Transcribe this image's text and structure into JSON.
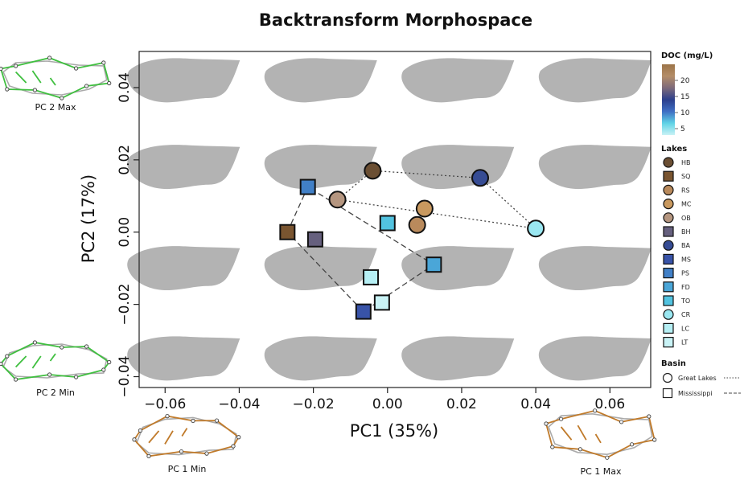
{
  "chart_data": {
    "type": "scatter",
    "title": "Backtransform Morphospace",
    "xlabel": "PC1 (35%)",
    "ylabel": "PC2 (17%)",
    "xlim": [
      -0.067,
      0.071
    ],
    "ylim": [
      -0.043,
      0.05
    ],
    "xticks": [
      -0.06,
      -0.04,
      -0.02,
      0.0,
      0.02,
      0.04,
      0.06
    ],
    "xtick_labels": [
      "−0.06",
      "−0.04",
      "−0.02",
      "0.00",
      "0.02",
      "0.04",
      "0.06"
    ],
    "yticks": [
      -0.04,
      -0.02,
      0.0,
      0.02,
      0.04
    ],
    "ytick_labels": [
      "−0.04",
      "−0.02",
      "0.00",
      "0.02",
      "0.04"
    ],
    "grid": false,
    "background_shapes": {
      "color": "#b3b3b3",
      "x_centers": [
        -0.055,
        -0.018,
        0.019,
        0.056
      ],
      "y_centers": [
        0.042,
        0.018,
        -0.01,
        -0.035
      ]
    },
    "colorbar": {
      "title": "DOC (mg/L)",
      "min": 3,
      "max": 25,
      "ticks": [
        5,
        10,
        15,
        20
      ],
      "stops": [
        "#c9f2f5",
        "#5fd3e6",
        "#3f6fc4",
        "#2c3f8c",
        "#7d6a7a",
        "#b48d68",
        "#9c7448"
      ]
    },
    "legend_lakes_title": "Lakes",
    "legend_basin_title": "Basin",
    "points": [
      {
        "lake": "HB",
        "basin": "Great Lakes",
        "x": -0.004,
        "y": 0.017,
        "color": "#6b4f33"
      },
      {
        "lake": "SQ",
        "basin": "Mississippi",
        "x": -0.027,
        "y": 0.0,
        "color": "#7a5530"
      },
      {
        "lake": "RS",
        "basin": "Great Lakes",
        "x": 0.008,
        "y": 0.002,
        "color": "#b98a5c"
      },
      {
        "lake": "MC",
        "basin": "Great Lakes",
        "x": 0.01,
        "y": 0.0065,
        "color": "#c9995f"
      },
      {
        "lake": "OB",
        "basin": "Great Lakes",
        "x": -0.0135,
        "y": 0.009,
        "color": "#b59680"
      },
      {
        "lake": "BH",
        "basin": "Mississippi",
        "x": -0.0195,
        "y": -0.002,
        "color": "#66607e"
      },
      {
        "lake": "BA",
        "basin": "Great Lakes",
        "x": 0.025,
        "y": 0.015,
        "color": "#364c94"
      },
      {
        "lake": "MS",
        "basin": "Mississippi",
        "x": -0.0065,
        "y": -0.022,
        "color": "#3853a8"
      },
      {
        "lake": "PS",
        "basin": "Mississippi",
        "x": -0.0215,
        "y": 0.0125,
        "color": "#4180c7"
      },
      {
        "lake": "FD",
        "basin": "Mississippi",
        "x": 0.0125,
        "y": -0.009,
        "color": "#4aa6d8"
      },
      {
        "lake": "TO",
        "basin": "Mississippi",
        "x": 0.0,
        "y": 0.0025,
        "color": "#52c3e0"
      },
      {
        "lake": "CR",
        "basin": "Great Lakes",
        "x": 0.04,
        "y": 0.001,
        "color": "#9ae7f1"
      },
      {
        "lake": "LC",
        "basin": "Mississippi",
        "x": -0.0045,
        "y": -0.0125,
        "color": "#b6eff4"
      },
      {
        "lake": "LT",
        "basin": "Mississippi",
        "x": -0.0015,
        "y": -0.0195,
        "color": "#c9f3f6"
      }
    ],
    "hulls": [
      {
        "basin": "Great Lakes",
        "line": "dotted",
        "x": [
          -0.004,
          0.025,
          0.04,
          -0.0135
        ],
        "y": [
          0.017,
          0.015,
          0.001,
          0.009
        ]
      },
      {
        "basin": "Mississippi",
        "line": "dashed",
        "x": [
          -0.027,
          -0.0215,
          0.0125,
          -0.0065
        ],
        "y": [
          0.0,
          0.0125,
          -0.009,
          -0.022
        ]
      }
    ],
    "basin_legend": [
      {
        "label": "Great Lakes",
        "marker": "circle",
        "line": "dotted"
      },
      {
        "label": "Mississippi",
        "marker": "square",
        "line": "dashed"
      }
    ],
    "insets": [
      {
        "label": "PC 2 Max",
        "color": "#3fbf3f"
      },
      {
        "label": "PC 2 Min",
        "color": "#3fbf3f"
      },
      {
        "label": "PC 1 Min",
        "color": "#c07a2a"
      },
      {
        "label": "PC 1 Max",
        "color": "#c07a2a"
      }
    ]
  }
}
